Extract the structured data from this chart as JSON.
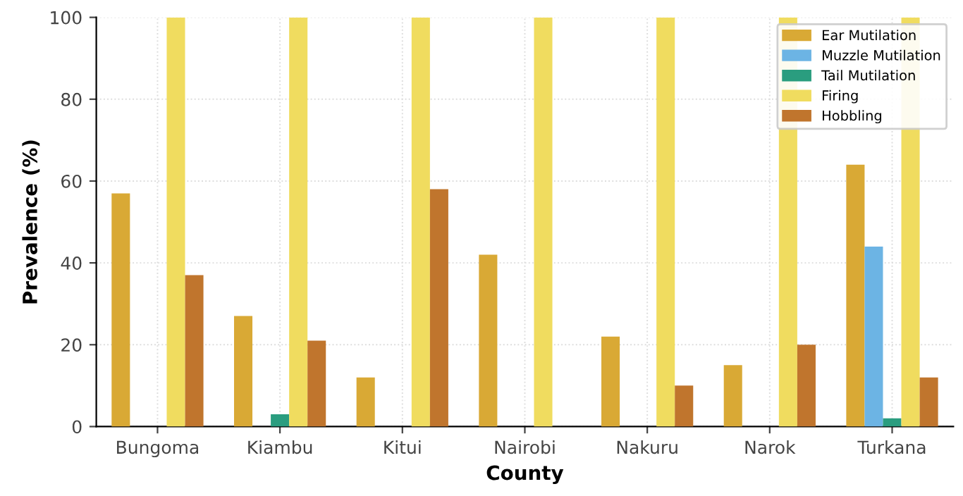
{
  "chart_data": {
    "type": "bar",
    "xlabel": "County",
    "ylabel": "Prevalence (%)",
    "categories": [
      "Bungoma",
      "Kiambu",
      "Kitui",
      "Nairobi",
      "Nakuru",
      "Narok",
      "Turkana"
    ],
    "series": [
      {
        "name": "Ear Mutilation",
        "color": "#d9a935",
        "values": [
          57,
          27,
          12,
          42,
          22,
          15,
          64
        ]
      },
      {
        "name": "Muzzle Mutilation",
        "color": "#6cb4e4",
        "values": [
          0,
          0,
          0,
          0,
          0,
          0,
          44
        ]
      },
      {
        "name": "Tail Mutilation",
        "color": "#2a9d7f",
        "values": [
          0,
          3,
          0,
          0,
          0,
          0,
          2
        ]
      },
      {
        "name": "Firing",
        "color": "#f0dc5f",
        "values": [
          100,
          100,
          100,
          100,
          100,
          100,
          100
        ]
      },
      {
        "name": "Hobbling",
        "color": "#c0752d",
        "values": [
          37,
          21,
          58,
          0,
          10,
          20,
          12
        ]
      }
    ],
    "ylim": [
      0,
      100
    ],
    "yticks": [
      0,
      20,
      40,
      60,
      80,
      100
    ],
    "grid": true,
    "legend": "top right"
  }
}
